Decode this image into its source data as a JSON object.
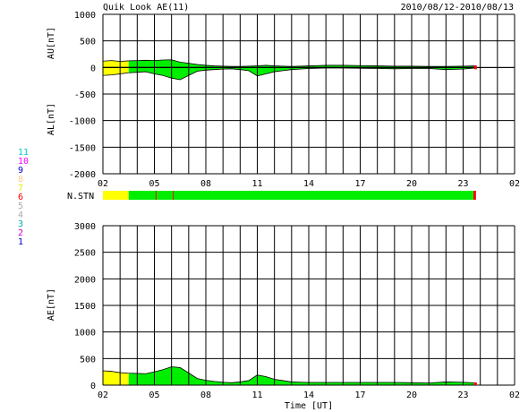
{
  "header": {
    "title": "Quik Look AE(11)",
    "date_range": "2010/08/12-2010/08/13"
  },
  "colors": {
    "yellow": "#ffff00",
    "green": "#00ee00",
    "red": "#ff0000",
    "grid": "#000000"
  },
  "legend": [
    {
      "num": "11",
      "color": "#00cccc"
    },
    {
      "num": "10",
      "color": "#ff00ff"
    },
    {
      "num": "9",
      "color": "#0000cc"
    },
    {
      "num": "8",
      "color": "#ffcc88"
    },
    {
      "num": "7",
      "color": "#e8e800"
    },
    {
      "num": "6",
      "color": "#ff0000"
    },
    {
      "num": "5",
      "color": "#aaaaaa"
    },
    {
      "num": "4",
      "color": "#aaaaaa"
    },
    {
      "num": "3",
      "color": "#00aaaa"
    },
    {
      "num": "2",
      "color": "#cc00cc"
    },
    {
      "num": "1",
      "color": "#0000cc"
    }
  ],
  "chart_data": [
    {
      "type": "area",
      "name": "AU/AL",
      "ylabel_top": "AU[nT]",
      "ylabel_bottom": "AL[nT]",
      "ylim": [
        -2000,
        1000
      ],
      "yticks": [
        "1000",
        "500",
        "0",
        "-500",
        "-1000",
        "-1500",
        "-2000"
      ],
      "yticks_values": [
        1000,
        500,
        0,
        -500,
        -1000,
        -1500,
        -2000
      ],
      "xticks": [
        "02",
        "05",
        "08",
        "11",
        "14",
        "17",
        "20",
        "23",
        "02"
      ],
      "xlim_hours": [
        2,
        26
      ],
      "data_end_hour": 23.75,
      "yellow_until_hour": 3.5,
      "au": [
        [
          2,
          120
        ],
        [
          2.5,
          130
        ],
        [
          3,
          115
        ],
        [
          3.5,
          125
        ],
        [
          4,
          130
        ],
        [
          4.5,
          135
        ],
        [
          5,
          130
        ],
        [
          5.5,
          140
        ],
        [
          6,
          145
        ],
        [
          6.5,
          100
        ],
        [
          7,
          80
        ],
        [
          7.5,
          55
        ],
        [
          8,
          40
        ],
        [
          8.5,
          30
        ],
        [
          9,
          25
        ],
        [
          9.5,
          20
        ],
        [
          10,
          20
        ],
        [
          10.5,
          25
        ],
        [
          11,
          30
        ],
        [
          11.5,
          40
        ],
        [
          12,
          30
        ],
        [
          12.5,
          25
        ],
        [
          13,
          20
        ],
        [
          13.5,
          25
        ],
        [
          14,
          30
        ],
        [
          14.5,
          35
        ],
        [
          15,
          40
        ],
        [
          16,
          40
        ],
        [
          17,
          35
        ],
        [
          18,
          30
        ],
        [
          19,
          25
        ],
        [
          20,
          25
        ],
        [
          21,
          20
        ],
        [
          22,
          20
        ],
        [
          23,
          25
        ],
        [
          23.75,
          30
        ]
      ],
      "al": [
        [
          2,
          -150
        ],
        [
          2.5,
          -140
        ],
        [
          3,
          -120
        ],
        [
          3.5,
          -100
        ],
        [
          4,
          -90
        ],
        [
          4.5,
          -80
        ],
        [
          5,
          -120
        ],
        [
          5.5,
          -150
        ],
        [
          6,
          -200
        ],
        [
          6.5,
          -230
        ],
        [
          7,
          -150
        ],
        [
          7.5,
          -70
        ],
        [
          8,
          -50
        ],
        [
          8.5,
          -40
        ],
        [
          9,
          -30
        ],
        [
          9.5,
          -25
        ],
        [
          10,
          -40
        ],
        [
          10.5,
          -60
        ],
        [
          11,
          -160
        ],
        [
          11.5,
          -120
        ],
        [
          12,
          -80
        ],
        [
          12.5,
          -60
        ],
        [
          13,
          -40
        ],
        [
          13.5,
          -30
        ],
        [
          14,
          -20
        ],
        [
          14.5,
          -15
        ],
        [
          15,
          -10
        ],
        [
          16,
          -10
        ],
        [
          17,
          -15
        ],
        [
          18,
          -20
        ],
        [
          19,
          -25
        ],
        [
          20,
          -20
        ],
        [
          21,
          -20
        ],
        [
          22,
          -40
        ],
        [
          23,
          -30
        ],
        [
          23.75,
          -10
        ]
      ]
    },
    {
      "type": "bar",
      "name": "N.STN",
      "label": "N.STN",
      "segments": [
        {
          "from": 2,
          "to": 3.5,
          "color": "yellow"
        },
        {
          "from": 3.5,
          "to": 23.6,
          "color": "green"
        },
        {
          "from": 23.6,
          "to": 23.75,
          "color": "red"
        }
      ],
      "markers": [
        5.1,
        6.1
      ]
    },
    {
      "type": "area",
      "name": "AE",
      "ylabel": "AE[nT]",
      "xlabel": "Time [UT]",
      "ylim": [
        0,
        3000
      ],
      "yticks": [
        "3000",
        "2500",
        "2000",
        "1500",
        "1000",
        "500",
        "0"
      ],
      "yticks_values": [
        3000,
        2500,
        2000,
        1500,
        1000,
        500,
        0
      ],
      "xticks": [
        "02",
        "05",
        "08",
        "11",
        "14",
        "17",
        "20",
        "23",
        "02"
      ],
      "xlim_hours": [
        2,
        26
      ],
      "data_end_hour": 23.75,
      "yellow_until_hour": 3.5,
      "ae": [
        [
          2,
          270
        ],
        [
          2.5,
          260
        ],
        [
          3,
          235
        ],
        [
          3.5,
          225
        ],
        [
          4,
          220
        ],
        [
          4.5,
          215
        ],
        [
          5,
          250
        ],
        [
          5.5,
          290
        ],
        [
          6,
          345
        ],
        [
          6.5,
          330
        ],
        [
          7,
          230
        ],
        [
          7.5,
          125
        ],
        [
          8,
          90
        ],
        [
          8.5,
          70
        ],
        [
          9,
          55
        ],
        [
          9.5,
          45
        ],
        [
          10,
          60
        ],
        [
          10.5,
          85
        ],
        [
          11,
          190
        ],
        [
          11.5,
          160
        ],
        [
          12,
          110
        ],
        [
          12.5,
          85
        ],
        [
          13,
          60
        ],
        [
          13.5,
          55
        ],
        [
          14,
          50
        ],
        [
          14.5,
          50
        ],
        [
          15,
          50
        ],
        [
          16,
          50
        ],
        [
          17,
          50
        ],
        [
          18,
          50
        ],
        [
          19,
          50
        ],
        [
          20,
          45
        ],
        [
          21,
          40
        ],
        [
          22,
          60
        ],
        [
          23,
          55
        ],
        [
          23.75,
          40
        ]
      ]
    }
  ]
}
